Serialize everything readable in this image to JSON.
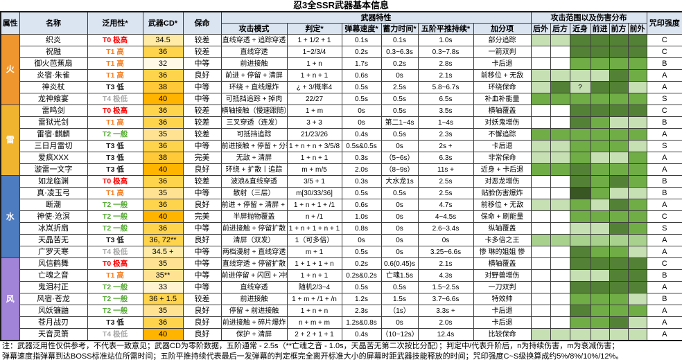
{
  "title": "忍3全SSR武器基本信息",
  "header": {
    "attr": "属性",
    "name": "名称",
    "versatility": "泛用性*",
    "cd": "武器CD*",
    "life": "保命",
    "traits": "武器特性",
    "mode": "攻击模式",
    "judge": "判定*",
    "speed": "弹幕速度*",
    "charge": "蓄力时间*",
    "push": "五阶平推持续*",
    "bonus": "加分项",
    "range": "攻击范围以及伤害分布",
    "range_cols": [
      "后外",
      "后方",
      "近身",
      "前进",
      "前方",
      "前外"
    ],
    "curse": "咒印强度"
  },
  "tier_colors": {
    "T0": "#ff0000",
    "T1": "#f57e22",
    "T2": "#55ab34",
    "T3": "#1a1a1a",
    "T4": "#a8a8a8"
  },
  "range_shades": {
    "W": "#ffffff",
    "L": "#c6e0b4",
    "LM": "#a9d18e",
    "M": "#70ad47",
    "D": "#538135",
    "XD": "#385723"
  },
  "groups": [
    {
      "element": "火",
      "color": "#f0962e",
      "rows": [
        {
          "name": "织炎",
          "tier": "T0 极高",
          "tier_key": "T0",
          "cd": "34.5",
          "cd_color": "#ffeba6",
          "life": "较差",
          "mode": "直线穿透 + 追踪穿透",
          "judge": "1 + 1/2 + 1",
          "speed": "0.1s",
          "charge": "0.1s",
          "push": "1.0s",
          "bonus": "部分追踪",
          "range": [
            "L",
            "L",
            "D",
            "D",
            "D",
            "D"
          ],
          "curse": "C"
        },
        {
          "name": "祝融",
          "tier": "T1 高",
          "tier_key": "T1",
          "cd": "36",
          "cd_color": "#ffd44d",
          "life": "较差",
          "mode": "直线穿透",
          "judge": "1~2/3/4",
          "speed": "0.2s",
          "charge": "0.3~6.3s",
          "push": "0.3~7.8s",
          "bonus": "一箭双判",
          "range": [
            "W",
            "W",
            "D",
            "D",
            "D",
            "D"
          ],
          "curse": "C"
        },
        {
          "name": "御火芭蕉扇",
          "tier": "T1 高",
          "tier_key": "T1",
          "cd": "32",
          "cd_color": "#fff9e6",
          "life": "中等",
          "mode": "前进接触",
          "judge": "1 + n",
          "speed": "1.7s",
          "charge": "0.2s",
          "push": "2.8s",
          "bonus": "卡后退",
          "range": [
            "W",
            "W",
            "M",
            "M",
            "M",
            "M"
          ],
          "curse": "B"
        },
        {
          "name": "炎宿·朱雀",
          "tier": "T1 高",
          "tier_key": "T1",
          "cd": "36",
          "cd_color": "#ffd44d",
          "life": "良好",
          "mode": "前进 + 停留 + 清屏",
          "judge": "1 + n + 1",
          "speed": "0.6s",
          "charge": "0s",
          "push": "2.1s",
          "bonus": "前移位 + 无敌",
          "range": [
            "L",
            "L",
            "L",
            "L",
            "D",
            "M"
          ],
          "curse": "A"
        },
        {
          "name": "神炎杖",
          "tier": "T3 低",
          "tier_key": "T3",
          "cd": "38",
          "cd_color": "#ffc937",
          "life": "中等",
          "mode": "环绕 + 直线爆炸",
          "judge": "¿ + 3/概率4",
          "speed": "0.5s",
          "charge": "2.5s",
          "push": "5.8~6.7s",
          "bonus": "环绕保命",
          "range": [
            "L",
            "D",
            "L:?",
            "D",
            "D",
            "L"
          ],
          "curse": "A"
        },
        {
          "name": "龙神飨宴",
          "tier": "T4 极低",
          "tier_key": "T4",
          "cd": "40",
          "cd_color": "#ffb400",
          "life": "中等",
          "mode": "可抵挡追踪 + 掉肉",
          "judge": "22/27",
          "speed": "0.5s",
          "charge": "0.5s",
          "push": "6.5s",
          "bonus": "补血补能量",
          "range": [
            "M",
            "M",
            "M",
            "M",
            "M",
            "M"
          ],
          "curse": "S"
        }
      ]
    },
    {
      "element": "雷",
      "color": "#f1b42f",
      "rows": [
        {
          "name": "雷鸣剑",
          "tier": "T0 极高",
          "tier_key": "T0",
          "cd": "36",
          "cd_color": "#ffd44d",
          "life": "较差",
          "mode": "横轴接触（慢速跟随）",
          "judge": "1 + m",
          "speed": "0s",
          "charge": "0.5s",
          "push": "3.5s",
          "bonus": "横轴覆盖",
          "range": [
            "W",
            "W",
            "D",
            "D",
            "D",
            "D"
          ],
          "curse": "C"
        },
        {
          "name": "雷狱光剑",
          "tier": "T1 高",
          "tier_key": "T1",
          "cd": "36",
          "cd_color": "#ffd44d",
          "life": "较差",
          "mode": "三叉穿透（连发）",
          "judge": "3 + 3",
          "speed": "0s",
          "charge": "第二1~4s",
          "push": "1~4s",
          "bonus": "对妖鬼增伤",
          "range": [
            "W",
            "W",
            "D",
            "M",
            "L",
            "L"
          ],
          "curse": "B"
        },
        {
          "name": "雷宿·麒麟",
          "tier": "T2 一般",
          "tier_key": "T2",
          "cd": "35",
          "cd_color": "#ffe392",
          "life": "较差",
          "mode": "可抵挡追踪",
          "judge": "21/23/26",
          "speed": "0.4s",
          "charge": "0.5s",
          "push": "2.3s",
          "bonus": "不懈追踪",
          "range": [
            "M",
            "M",
            "M",
            "M",
            "M",
            "M"
          ],
          "curse": "A"
        },
        {
          "name": "三日月雷切",
          "tier": "T3 低",
          "tier_key": "T3",
          "cd": "36",
          "cd_color": "#ffd44d",
          "life": "中等",
          "mode": "前进接触 + 停留 + 分裂",
          "judge": "1 + n + n + 3/5/8",
          "speed": "0.5s&0.5s",
          "charge": "0s",
          "push": "2s +",
          "bonus": "卡后退",
          "range": [
            "L",
            "L",
            "M",
            "M",
            "M",
            "L"
          ],
          "curse": "S"
        },
        {
          "name": "爱疯XXX",
          "tier": "T3 低",
          "tier_key": "T3",
          "cd": "38",
          "cd_color": "#ffc937",
          "life": "完美",
          "mode": "无敌 + 清屏",
          "judge": "1 + n + 1",
          "speed": "0.3s",
          "charge": "（5~6s）",
          "push": "6.3s",
          "bonus": "非常保命",
          "range": [
            "L",
            "L",
            "M",
            "L",
            "L",
            "M"
          ],
          "curse": "A"
        },
        {
          "name": "漩雷一文字",
          "tier": "T3 低",
          "tier_key": "T3",
          "cd": "40",
          "cd_color": "#ffb400",
          "life": "良好",
          "mode": "环绕 + 扩散丨追踪",
          "judge": "m + m/5",
          "speed": "2.0s",
          "charge": "（8~9s）",
          "push": "11s +",
          "bonus": "近身 + 卡后退",
          "range": [
            "M",
            "M",
            "D",
            "M",
            "M",
            "M"
          ],
          "curse": "A"
        }
      ]
    },
    {
      "element": "水",
      "color": "#4e7cc0",
      "rows": [
        {
          "name": "如龙临渊",
          "tier": "T0 极高",
          "tier_key": "T0",
          "cd": "36",
          "cd_color": "#ffd44d",
          "life": "较差",
          "mode": "波浪&直线穿透",
          "judge": "3/5 + 1",
          "speed": "0.3s",
          "charge": "大水龙1s",
          "push": "2.5s",
          "bonus": "对恶龙增伤",
          "range": [
            "W",
            "W",
            "D",
            "M",
            "D",
            "M"
          ],
          "curse": "B"
        },
        {
          "name": "真·凌玉弓",
          "tier": "T1 高",
          "tier_key": "T1",
          "cd": "35",
          "cd_color": "#ffe392",
          "life": "中等",
          "mode": "散射（三层）",
          "judge": "m[30/33/36]",
          "speed": "0.5s",
          "charge": "0.5s",
          "push": "2.5s",
          "bonus": "贴脸伤害爆炸",
          "range": [
            "W",
            "W",
            "XD",
            "M",
            "L",
            "L"
          ],
          "curse": "B"
        },
        {
          "name": "断潮",
          "tier": "T2 一般",
          "tier_key": "T2",
          "cd": "36",
          "cd_color": "#ffd44d",
          "life": "良好",
          "mode": "前进 + 停留 + 清屏 + 保护",
          "judge": "1 + n + 1 + /1",
          "speed": "0.6s",
          "charge": "0s",
          "push": "4.7s",
          "bonus": "前移位 + 无敌",
          "range": [
            "L",
            "L",
            "M",
            "L",
            "D",
            "M"
          ],
          "curse": "A"
        },
        {
          "name": "神使·沧溟",
          "tier": "T2 一般",
          "tier_key": "T2",
          "cd": "40",
          "cd_color": "#ffb400",
          "life": "完美",
          "mode": "半屏抛物覆盖",
          "judge": "n + /1",
          "speed": "1.0s",
          "charge": "0s",
          "push": "4~4.5s",
          "bonus": "保命 + 刷能量",
          "range": [
            "W",
            "W",
            "M",
            "M",
            "M",
            "M"
          ],
          "curse": "C"
        },
        {
          "name": "冰岚折扇",
          "tier": "T2 一般",
          "tier_key": "T2",
          "cd": "36",
          "cd_color": "#ffd44d",
          "life": "中等",
          "mode": "前进接触 + 停留扩散",
          "judge": "1 + n + 1 + n + 1",
          "speed": "0.8s",
          "charge": "0s",
          "push": "2.6~3.4s",
          "bonus": "纵轴覆盖",
          "range": [
            "W",
            "W",
            "L",
            "L",
            "D",
            "M"
          ],
          "curse": "S"
        },
        {
          "name": "天晶苦无",
          "tier": "T3 低",
          "tier_key": "T3",
          "cd": "36, 72**",
          "cd_color": "#ffd44d",
          "life": "良好",
          "mode": "清屏（双发）",
          "judge": "1（可多倍）",
          "speed": "0s",
          "charge": "0s",
          "push": "0s",
          "bonus": "卡多倍之王",
          "range": [
            "LM",
            "LM",
            "LM",
            "LM",
            "LM",
            "LM"
          ],
          "curse": "A"
        },
        {
          "name": "广罗天寒",
          "tier": "T4 极低",
          "tier_key": "T4",
          "cd": "34.5 +",
          "cd_color": "#ffeba6",
          "life": "中等",
          "mode": "两档漫射 + 直线穿透",
          "judge": "m + 1",
          "speed": "0.5s",
          "charge": "0s",
          "push": "3.25~6.6s",
          "bonus": "惨 琳的姐姐 惨",
          "range": [
            "W",
            "W",
            "D",
            "M",
            "M",
            "L"
          ],
          "curse": "A"
        }
      ]
    },
    {
      "element": "风",
      "color": "#a183d8",
      "rows": [
        {
          "name": "风信鹤舞",
          "tier": "T0 极高",
          "tier_key": "T0",
          "cd": "35",
          "cd_color": "#ffe392",
          "life": "中等",
          "mode": "直线穿透 + 停留扩散",
          "judge": "1 + 1 + 1 + n",
          "speed": "0.2s",
          "charge": "0.6(0.45)s",
          "push": "2.1s",
          "bonus": "横轴覆盖",
          "range": [
            "W",
            "W",
            "D",
            "D",
            "D",
            "D"
          ],
          "curse": "C"
        },
        {
          "name": "亡魂之音",
          "tier": "T1 高",
          "tier_key": "T1",
          "cd": "35**",
          "cd_color": "#ffe392",
          "life": "中等",
          "mode": "前进停留 + 闪回 + 冲刺",
          "judge": "1 + n + 1",
          "speed": "0.2s&0.2s",
          "charge": "亡魂1.5s",
          "push": "4.3s",
          "bonus": "对野兽增伤",
          "range": [
            "W",
            "W",
            "L",
            "L",
            "D",
            "D"
          ],
          "curse": "B"
        },
        {
          "name": "鬼泪村正",
          "tier": "T2 一般",
          "tier_key": "T2",
          "cd": "33",
          "cd_color": "#fff3d0",
          "life": "中等",
          "mode": "直线穿透",
          "judge": "随机2/3~4",
          "speed": "0.5s",
          "charge": "0.5s",
          "push": "1.5~2.5s",
          "bonus": "一刀双判",
          "range": [
            "W",
            "W",
            "D",
            "D",
            "D",
            "D"
          ],
          "curse": "A"
        },
        {
          "name": "风宿·苍龙",
          "tier": "T2 一般",
          "tier_key": "T2",
          "cd": "36 + 1.5",
          "cd_color": "#ffd44d",
          "life": "较差",
          "mode": "前进接触",
          "judge": "1 + m + /1 + /n",
          "speed": "1.2s",
          "charge": "1.5s",
          "push": "3.7~6.6s",
          "bonus": "特效帅",
          "range": [
            "W",
            "W",
            "M",
            "M",
            "M",
            "L"
          ],
          "curse": "B"
        },
        {
          "name": "风妖镰鼬",
          "tier": "T2 一般",
          "tier_key": "T2",
          "cd": "35",
          "cd_color": "#ffe392",
          "life": "良好",
          "mode": "停留 + 前进接触",
          "judge": "1 + n + n",
          "speed": "2.3s",
          "charge": "（1s）",
          "push": "3.3s +",
          "bonus": "卡后退",
          "range": [
            "W",
            "W",
            "D",
            "M",
            "M",
            "M"
          ],
          "curse": "A"
        },
        {
          "name": "苍月战刃",
          "tier": "T3 低",
          "tier_key": "T3",
          "cd": "36",
          "cd_color": "#ffd44d",
          "life": "良好",
          "mode": "前进接触 + 碎片爆炸",
          "judge": "n + m + m",
          "speed": "1.2s&0.8s",
          "charge": "0s",
          "push": "2.0s",
          "bonus": "卡后退",
          "range": [
            "W",
            "W",
            "M",
            "M",
            "D",
            "L"
          ],
          "curse": "A"
        },
        {
          "name": "天音灵箫",
          "tier": "T4 极低",
          "tier_key": "T4",
          "cd": "40",
          "cd_color": "#ffb400",
          "life": "良好",
          "mode": "保护 + 清屏",
          "judge": "2 + 2 + 1 + 1",
          "speed": "0.4s",
          "charge": "（10~12s）",
          "push": "12.4s",
          "bonus": "比较保命",
          "range": [
            "L",
            "L",
            "L",
            "L",
            "L",
            "L"
          ],
          "curse": "A"
        }
      ]
    }
  ],
  "notes": [
    "注：武器泛用性仅供参考，不代表一致意见；武器CD为零阶数据，五阶通常 - 2.5s（**亡魂之音 - 1.0s，天晶苦无第二次按比分配）；判定中/代表升阶后，n为持续伤害，m为衰减伤害；",
    "弹幕速度指弹幕到达BOSS标准站位所需时间；五阶平推持续代表最后一发弹幕的判定框完全离开标准大小的屏幕时距武器技能释放的时间；咒印强度C~S级换算成约5%/8%/10%/12%。"
  ]
}
